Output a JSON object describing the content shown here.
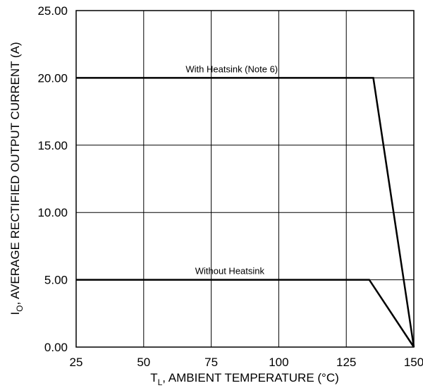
{
  "chart_data": {
    "type": "line",
    "title": "",
    "xlabel": {
      "main": "T",
      "subscript": "L",
      "rest": ", AMBIENT TEMPERATURE (°C)"
    },
    "ylabel": {
      "main": "I",
      "subscript": "O",
      "rest": ", AVERAGE RECTIFIED OUTPUT CURRENT (A)"
    },
    "xlim": [
      25,
      150
    ],
    "ylim": [
      0,
      25
    ],
    "x_ticks": [
      25,
      50,
      75,
      100,
      125,
      150
    ],
    "x_tick_labels": [
      "25",
      "50",
      "75",
      "100",
      "125",
      "150"
    ],
    "y_ticks": [
      0,
      5,
      10,
      15,
      20,
      25
    ],
    "y_tick_labels": [
      "0.00",
      "5.00",
      "10.00",
      "15.00",
      "20.00",
      "25.00"
    ],
    "grid": true,
    "legend": "none",
    "series": [
      {
        "name": "With Heatsink (Note 6)",
        "x": [
          25,
          135,
          150
        ],
        "y": [
          20,
          20,
          0
        ]
      },
      {
        "name": "Without Heatsink",
        "x": [
          25,
          133.5,
          150
        ],
        "y": [
          5,
          5,
          0
        ]
      }
    ]
  }
}
